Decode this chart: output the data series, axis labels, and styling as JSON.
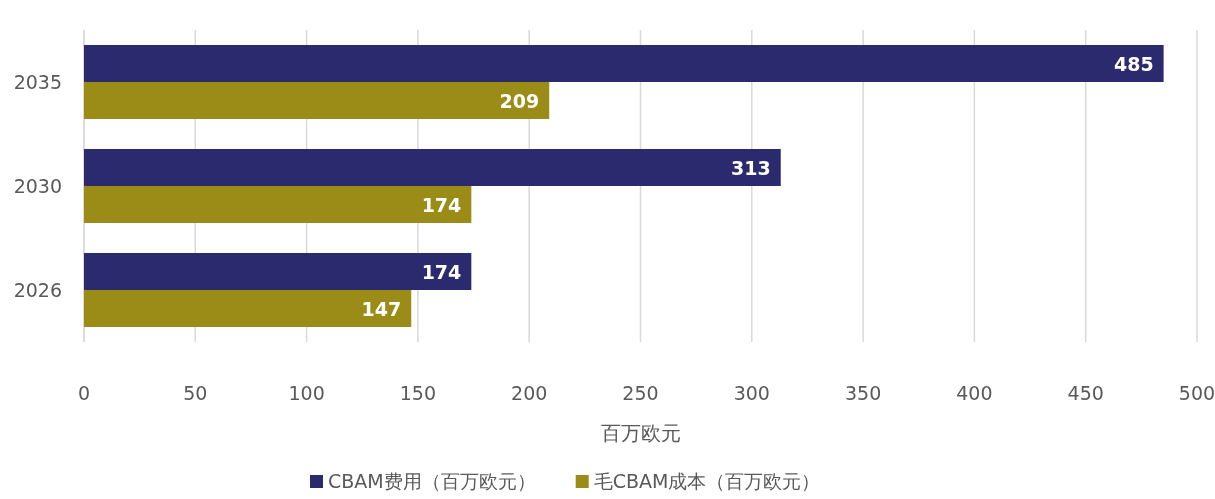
{
  "chart_data": {
    "type": "bar",
    "orientation": "horizontal",
    "categories": [
      "2035",
      "2030",
      "2026"
    ],
    "series": [
      {
        "name": "CBAM费用（百万欧元）",
        "color": "#2b2a6e",
        "values": [
          485,
          313,
          174
        ]
      },
      {
        "name": "毛CBAM成本（百万欧元）",
        "color": "#9a8c16",
        "values": [
          209,
          174,
          147
        ]
      }
    ],
    "xlim": [
      0,
      500
    ],
    "xticks": [
      0,
      50,
      100,
      150,
      200,
      250,
      300,
      350,
      400,
      450,
      500
    ],
    "xlabel": "百万欧元",
    "grid": "x",
    "legend": "bottom",
    "data_labels": true
  }
}
